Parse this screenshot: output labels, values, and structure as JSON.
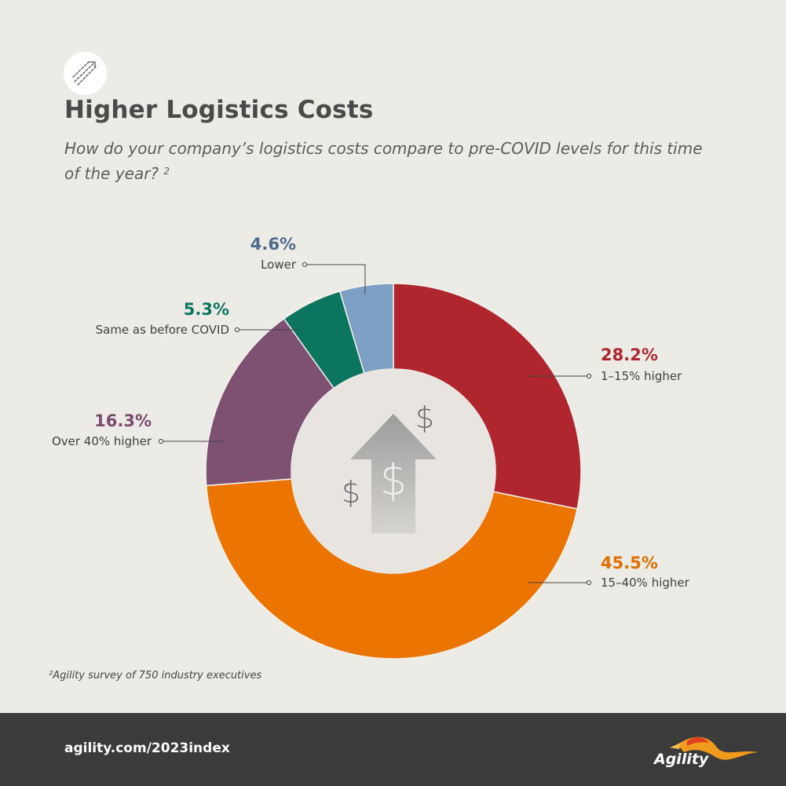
{
  "header": {
    "icon": "trend-arrows-icon",
    "title": "Higher Logistics Costs",
    "subtitle": "How do your company’s logistics costs compare to pre-COVID levels for this time of the year?",
    "subtitle_ref": "2"
  },
  "chart_data": {
    "type": "pie",
    "style": "donut",
    "title": "Higher Logistics Costs",
    "slices": [
      {
        "label": "1–15% higher",
        "value": 28.2,
        "value_label": "28.2%",
        "color": "#b0262f"
      },
      {
        "label": "15–40% higher",
        "value": 45.5,
        "value_label": "45.5%",
        "color": "#eb7500"
      },
      {
        "label": "Over 40% higher",
        "value": 16.3,
        "value_label": "16.3%",
        "color": "#7e5172"
      },
      {
        "label": "Same as before COVID",
        "value": 5.3,
        "value_label": "5.3%",
        "color": "#0b7560"
      },
      {
        "label": "Lower",
        "value": 4.6,
        "value_label": "4.6%",
        "color": "#7e9fc4"
      }
    ],
    "center_symbols": [
      "$",
      "$",
      "$"
    ],
    "center_icon": "upward-dollar-arrow-icon",
    "value_label_colors": [
      "#b0262f",
      "#e06f00",
      "#7a4b6f",
      "#0b7560",
      "#4c6a8d"
    ]
  },
  "footnote": "²Agility survey of 750 industry executives",
  "footer": {
    "url": "agility.com/2023index",
    "brand": "Agility",
    "brand_icon": "agility-bird-logo-icon"
  },
  "colors": {
    "background": "#edebe6",
    "footer_background": "#3b3b3b",
    "title_text": "#4a4a4a"
  }
}
